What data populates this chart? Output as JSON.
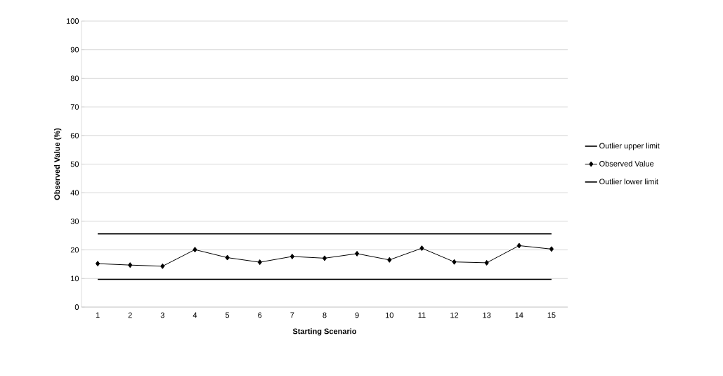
{
  "chart_data": {
    "type": "line",
    "xlabel": "Starting Scenario",
    "ylabel": "Observed Value  (%)",
    "categories": [
      "1",
      "2",
      "3",
      "4",
      "5",
      "6",
      "7",
      "8",
      "9",
      "10",
      "11",
      "12",
      "13",
      "14",
      "15"
    ],
    "series": [
      {
        "name": "Outlier upper limit",
        "color": "#000000",
        "marker": "none",
        "values": [
          25.6,
          25.6,
          25.6,
          25.6,
          25.6,
          25.6,
          25.6,
          25.6,
          25.6,
          25.6,
          25.6,
          25.6,
          25.6,
          25.6,
          25.6
        ]
      },
      {
        "name": "Observed Value",
        "color": "#000000",
        "marker": "diamond",
        "values": [
          15.2,
          14.7,
          14.3,
          20.1,
          17.3,
          15.7,
          17.7,
          17.1,
          18.7,
          16.5,
          20.6,
          15.8,
          15.5,
          21.5,
          20.3
        ]
      },
      {
        "name": "Outlier lower limit",
        "color": "#000000",
        "marker": "none",
        "values": [
          9.7,
          9.7,
          9.7,
          9.7,
          9.7,
          9.7,
          9.7,
          9.7,
          9.7,
          9.7,
          9.7,
          9.7,
          9.7,
          9.7,
          9.7
        ]
      }
    ],
    "ylim": [
      0,
      100
    ],
    "yticks": [
      0,
      10,
      20,
      30,
      40,
      50,
      60,
      70,
      80,
      90,
      100
    ],
    "grid": "y",
    "legend": "right"
  }
}
